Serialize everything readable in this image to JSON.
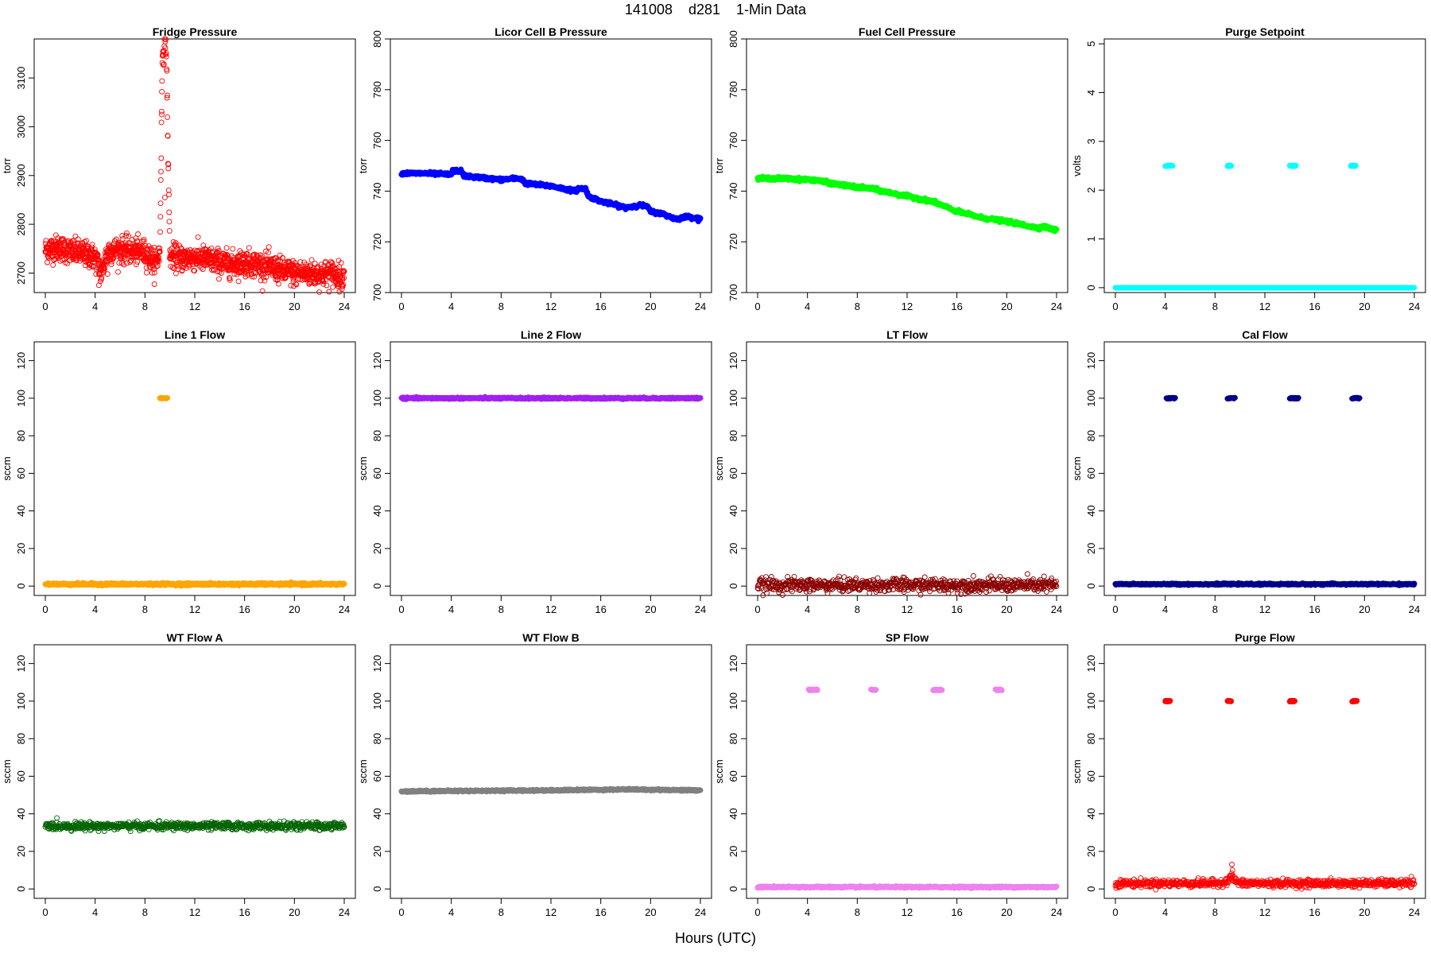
{
  "page": {
    "title": "141008    d281    1-Min Data",
    "xlabel": "Hours (UTC)"
  },
  "chart_data": [
    {
      "type": "scatter",
      "title": "Fridge Pressure",
      "ylabel": "torr",
      "xlim": [
        0,
        24
      ],
      "ylim": [
        2660,
        3180
      ],
      "xticks": [
        0,
        4,
        8,
        12,
        16,
        20,
        24
      ],
      "yticks": [
        2700,
        2800,
        2900,
        3000,
        3100
      ],
      "color": "#ff0000",
      "marker": "open-circle",
      "series": [
        {
          "x": [
            0,
            1,
            2,
            3,
            4,
            4.5,
            5,
            6,
            7,
            8,
            8.8,
            9.2,
            9.4,
            9.5,
            9.6,
            9.7,
            10,
            11,
            12,
            13,
            14,
            15,
            16,
            17,
            18,
            19,
            20,
            21,
            22,
            23,
            24
          ],
          "y": [
            2748,
            2752,
            2745,
            2740,
            2732,
            2700,
            2745,
            2748,
            2745,
            2742,
            2720,
            2740,
            3150,
            3160,
            3170,
            3180,
            2735,
            2730,
            2732,
            2728,
            2722,
            2718,
            2722,
            2718,
            2712,
            2705,
            2700,
            2700,
            2698,
            2700,
            2690
          ],
          "noise": 13,
          "outliers": [
            {
              "x": 9.35,
              "y": 3025
            },
            {
              "x": 9.6,
              "y": 2855
            },
            {
              "x": 4.3,
              "y": 2675
            },
            {
              "x": 5.0,
              "y": 2698
            }
          ]
        }
      ]
    },
    {
      "type": "scatter",
      "title": "Licor Cell B Pressure",
      "ylabel": "torr",
      "xlim": [
        0,
        24
      ],
      "ylim": [
        700,
        800
      ],
      "xticks": [
        0,
        4,
        8,
        12,
        16,
        20,
        24
      ],
      "yticks": [
        700,
        720,
        740,
        760,
        780,
        800
      ],
      "color": "#0000ff",
      "marker": "filled-circle",
      "series": [
        {
          "x": [
            0,
            2,
            4,
            4.1,
            4.8,
            5,
            8,
            9.1,
            9.6,
            10,
            12,
            14,
            14.2,
            14.8,
            15,
            16,
            18,
            19.1,
            19.7,
            20,
            21,
            22,
            23,
            24
          ],
          "y": [
            747,
            747,
            746.5,
            748,
            748,
            746,
            744.5,
            745,
            745,
            743,
            742,
            740,
            741,
            741,
            738,
            736,
            733.5,
            734.5,
            734,
            732,
            731,
            729,
            730,
            729
          ],
          "noise": 0.3
        }
      ]
    },
    {
      "type": "scatter",
      "title": "Fuel Cell Pressure",
      "ylabel": "torr",
      "xlim": [
        0,
        24
      ],
      "ylim": [
        700,
        800
      ],
      "xticks": [
        0,
        4,
        8,
        12,
        16,
        20,
        24
      ],
      "yticks": [
        700,
        720,
        740,
        760,
        780,
        800
      ],
      "color": "#00ff00",
      "marker": "filled-circle",
      "series": [
        {
          "x": [
            0,
            2,
            4,
            4.5,
            6,
            8,
            9.2,
            10,
            12,
            14,
            14.5,
            16,
            18,
            20,
            21,
            22,
            22.5,
            23,
            24
          ],
          "y": [
            745,
            745,
            744.5,
            744.5,
            743,
            741.5,
            741,
            740,
            738,
            736,
            735,
            732,
            729.5,
            728,
            727,
            726,
            725.5,
            726,
            724.5
          ],
          "noise": 0.3
        }
      ]
    },
    {
      "type": "scatter",
      "title": "Purge Setpoint",
      "ylabel": "volts",
      "xlim": [
        0,
        24
      ],
      "ylim": [
        -0.1,
        5.1
      ],
      "xticks": [
        0,
        4,
        8,
        12,
        16,
        20,
        24
      ],
      "yticks": [
        0,
        1,
        2,
        3,
        4,
        5
      ],
      "color": "#00ffff",
      "marker": "open-circle",
      "series": [
        {
          "x": [
            0,
            24
          ],
          "y": [
            0,
            0
          ],
          "noise": 0,
          "clusters": [
            {
              "x0": 4.0,
              "x1": 4.6,
              "y": 2.5
            },
            {
              "x0": 9.0,
              "x1": 9.3,
              "y": 2.5
            },
            {
              "x0": 14.0,
              "x1": 14.5,
              "y": 2.5
            },
            {
              "x0": 18.9,
              "x1": 19.3,
              "y": 2.5
            }
          ]
        }
      ]
    },
    {
      "type": "scatter",
      "title": "Line 1 Flow",
      "ylabel": "sccm",
      "xlim": [
        0,
        24
      ],
      "ylim": [
        -5,
        130
      ],
      "xticks": [
        0,
        4,
        8,
        12,
        16,
        20,
        24
      ],
      "yticks": [
        0,
        20,
        40,
        60,
        80,
        100,
        120
      ],
      "color": "#ffa500",
      "marker": "filled-circle",
      "series": [
        {
          "x": [
            0,
            24
          ],
          "y": [
            1,
            1
          ],
          "noise": 0.3,
          "clusters": [
            {
              "x0": 9.2,
              "x1": 9.8,
              "y": 100
            }
          ]
        }
      ]
    },
    {
      "type": "scatter",
      "title": "Line 2 Flow",
      "ylabel": "sccm",
      "xlim": [
        0,
        24
      ],
      "ylim": [
        -5,
        130
      ],
      "xticks": [
        0,
        4,
        8,
        12,
        16,
        20,
        24
      ],
      "yticks": [
        0,
        20,
        40,
        60,
        80,
        100,
        120
      ],
      "color": "#a020f0",
      "marker": "filled-circle",
      "series": [
        {
          "x": [
            0,
            24
          ],
          "y": [
            100,
            100
          ],
          "noise": 0.2
        }
      ]
    },
    {
      "type": "scatter",
      "title": "LT Flow",
      "ylabel": "sccm",
      "xlim": [
        0,
        24
      ],
      "ylim": [
        -5,
        130
      ],
      "xticks": [
        0,
        4,
        8,
        12,
        16,
        20,
        24
      ],
      "yticks": [
        0,
        20,
        40,
        60,
        80,
        100,
        120
      ],
      "color": "#8b0000",
      "marker": "open-circle",
      "series": [
        {
          "x": [
            0,
            24
          ],
          "y": [
            0.5,
            0.5
          ],
          "noise": 1.8
        }
      ]
    },
    {
      "type": "scatter",
      "title": "Cal Flow",
      "ylabel": "sccm",
      "xlim": [
        0,
        24
      ],
      "ylim": [
        -5,
        130
      ],
      "xticks": [
        0,
        4,
        8,
        12,
        16,
        20,
        24
      ],
      "yticks": [
        0,
        20,
        40,
        60,
        80,
        100,
        120
      ],
      "color": "#00008b",
      "marker": "filled-circle",
      "series": [
        {
          "x": [
            0,
            24
          ],
          "y": [
            1,
            1
          ],
          "noise": 0.2,
          "clusters": [
            {
              "x0": 4.1,
              "x1": 4.8,
              "y": 100
            },
            {
              "x0": 9.0,
              "x1": 9.6,
              "y": 100
            },
            {
              "x0": 14.0,
              "x1": 14.7,
              "y": 100
            },
            {
              "x0": 19.0,
              "x1": 19.6,
              "y": 100
            }
          ]
        }
      ]
    },
    {
      "type": "scatter",
      "title": "WT Flow A",
      "ylabel": "sccm",
      "xlim": [
        0,
        24
      ],
      "ylim": [
        -5,
        130
      ],
      "xticks": [
        0,
        4,
        8,
        12,
        16,
        20,
        24
      ],
      "yticks": [
        0,
        20,
        40,
        60,
        80,
        100,
        120
      ],
      "color": "#006400",
      "marker": "open-circle",
      "series": [
        {
          "x": [
            0,
            24
          ],
          "y": [
            33.5,
            33.5
          ],
          "noise": 1.0
        }
      ]
    },
    {
      "type": "scatter",
      "title": "WT Flow B",
      "ylabel": "sccm",
      "xlim": [
        0,
        24
      ],
      "ylim": [
        -5,
        130
      ],
      "xticks": [
        0,
        4,
        8,
        12,
        16,
        20,
        24
      ],
      "yticks": [
        0,
        20,
        40,
        60,
        80,
        100,
        120
      ],
      "color": "#808080",
      "marker": "filled-circle",
      "series": [
        {
          "x": [
            0,
            12,
            18,
            24
          ],
          "y": [
            52,
            52.5,
            53,
            52.5
          ],
          "noise": 0.2
        }
      ]
    },
    {
      "type": "scatter",
      "title": "SP Flow",
      "ylabel": "sccm",
      "xlim": [
        0,
        24
      ],
      "ylim": [
        -5,
        130
      ],
      "xticks": [
        0,
        4,
        8,
        12,
        16,
        20,
        24
      ],
      "yticks": [
        0,
        20,
        40,
        60,
        80,
        100,
        120
      ],
      "color": "#ee82ee",
      "marker": "filled-circle",
      "series": [
        {
          "x": [
            0,
            24
          ],
          "y": [
            1,
            1
          ],
          "noise": 0.2,
          "clusters": [
            {
              "x0": 4.1,
              "x1": 4.8,
              "y": 106
            },
            {
              "x0": 9.1,
              "x1": 9.5,
              "y": 106
            },
            {
              "x0": 14.1,
              "x1": 14.8,
              "y": 106
            },
            {
              "x0": 19.1,
              "x1": 19.6,
              "y": 106
            }
          ]
        }
      ]
    },
    {
      "type": "scatter",
      "title": "Purge Flow",
      "ylabel": "sccm",
      "xlim": [
        0,
        24
      ],
      "ylim": [
        -5,
        130
      ],
      "xticks": [
        0,
        4,
        8,
        12,
        16,
        20,
        24
      ],
      "yticks": [
        0,
        20,
        40,
        60,
        80,
        100,
        120
      ],
      "color": "#ff0000",
      "marker": "open-circle",
      "series": [
        {
          "x": [
            0,
            8,
            9,
            9.3,
            9.5,
            10,
            24
          ],
          "y": [
            3,
            3,
            4,
            7,
            5,
            3,
            3
          ],
          "noise": 1.0,
          "clusters": [
            {
              "x0": 4.0,
              "x1": 4.4,
              "y": 100
            },
            {
              "x0": 9.0,
              "x1": 9.3,
              "y": 100
            },
            {
              "x0": 14.0,
              "x1": 14.4,
              "y": 100
            },
            {
              "x0": 19.0,
              "x1": 19.4,
              "y": 100
            }
          ],
          "outliers": [
            {
              "x": 9.35,
              "y": 13
            },
            {
              "x": 9.4,
              "y": 10
            }
          ]
        }
      ]
    }
  ]
}
